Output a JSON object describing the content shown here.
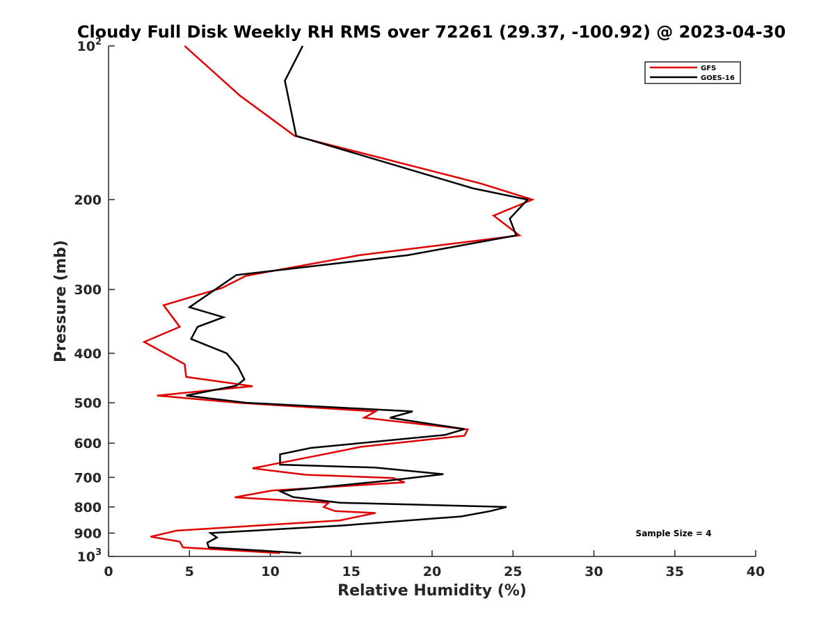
{
  "chart_data": {
    "type": "line",
    "title": "Cloudy Full Disk Weekly RH RMS over 72261 (29.37, -100.92) @ 2023-04-30",
    "xlabel": "Relative Humidity (%)",
    "ylabel": "Pressure (mb)",
    "xlim": [
      0,
      40
    ],
    "ylim": [
      1000,
      100
    ],
    "yscale": "log",
    "x_ticks": [
      0,
      5,
      10,
      15,
      20,
      25,
      30,
      35,
      40
    ],
    "y_ticks": [
      {
        "value": 100,
        "label": "10",
        "exp": "2"
      },
      {
        "value": 200,
        "label": "200"
      },
      {
        "value": 300,
        "label": "300"
      },
      {
        "value": 400,
        "label": "400"
      },
      {
        "value": 500,
        "label": "500"
      },
      {
        "value": 600,
        "label": "600"
      },
      {
        "value": 700,
        "label": "700"
      },
      {
        "value": 800,
        "label": "800"
      },
      {
        "value": 900,
        "label": "900"
      },
      {
        "value": 1000,
        "label": "10",
        "exp": "3"
      }
    ],
    "grid": false,
    "legend_position": "top-right",
    "annotation": "Sample Size = 4",
    "series": [
      {
        "name": "GFS",
        "color": "#e00000",
        "points": [
          [
            4.7,
            100
          ],
          [
            8.1,
            125
          ],
          [
            11.5,
            150
          ],
          [
            23.0,
            186
          ],
          [
            26.2,
            200
          ],
          [
            23.8,
            215
          ],
          [
            25.4,
            235
          ],
          [
            15.5,
            257
          ],
          [
            8.5,
            282
          ],
          [
            7.0,
            298
          ],
          [
            3.4,
            322
          ],
          [
            4.4,
            355
          ],
          [
            2.2,
            380
          ],
          [
            4.7,
            420
          ],
          [
            4.8,
            445
          ],
          [
            8.9,
            464
          ],
          [
            3.0,
            484
          ],
          [
            8.0,
            500
          ],
          [
            16.5,
            520
          ],
          [
            15.8,
            535
          ],
          [
            22.2,
            564
          ],
          [
            22.0,
            580
          ],
          [
            15.6,
            610
          ],
          [
            13.3,
            631
          ],
          [
            8.9,
            672
          ],
          [
            12.2,
            692
          ],
          [
            17.6,
            702
          ],
          [
            18.3,
            716
          ],
          [
            10.1,
            743
          ],
          [
            7.8,
            766
          ],
          [
            13.6,
            785
          ],
          [
            13.3,
            800
          ],
          [
            14.0,
            815
          ],
          [
            16.5,
            822
          ],
          [
            14.3,
            850
          ],
          [
            4.2,
            890
          ],
          [
            2.6,
            915
          ],
          [
            4.4,
            935
          ],
          [
            4.6,
            960
          ],
          [
            10.6,
            985
          ]
        ]
      },
      {
        "name": "GOES-16",
        "color": "#000000",
        "points": [
          [
            12.0,
            100
          ],
          [
            10.9,
            117
          ],
          [
            11.6,
            150
          ],
          [
            22.5,
            190
          ],
          [
            25.9,
            200
          ],
          [
            24.8,
            218
          ],
          [
            25.2,
            235
          ],
          [
            18.5,
            257
          ],
          [
            7.9,
            281
          ],
          [
            6.6,
            300
          ],
          [
            5.0,
            325
          ],
          [
            7.1,
            340
          ],
          [
            5.5,
            355
          ],
          [
            5.1,
            375
          ],
          [
            7.3,
            400
          ],
          [
            8.0,
            425
          ],
          [
            8.4,
            450
          ],
          [
            7.9,
            463
          ],
          [
            4.8,
            484
          ],
          [
            8.5,
            500
          ],
          [
            18.8,
            520
          ],
          [
            17.4,
            535
          ],
          [
            22.0,
            563
          ],
          [
            20.8,
            578
          ],
          [
            12.5,
            613
          ],
          [
            10.6,
            631
          ],
          [
            10.6,
            661
          ],
          [
            16.5,
            670
          ],
          [
            20.7,
            690
          ],
          [
            17.0,
            712
          ],
          [
            10.6,
            745
          ],
          [
            11.4,
            765
          ],
          [
            14.3,
            785
          ],
          [
            24.6,
            800
          ],
          [
            23.6,
            815
          ],
          [
            21.8,
            835
          ],
          [
            14.4,
            870
          ],
          [
            6.3,
            900
          ],
          [
            6.7,
            918
          ],
          [
            6.1,
            940
          ],
          [
            6.2,
            960
          ],
          [
            11.9,
            985
          ]
        ]
      }
    ]
  }
}
